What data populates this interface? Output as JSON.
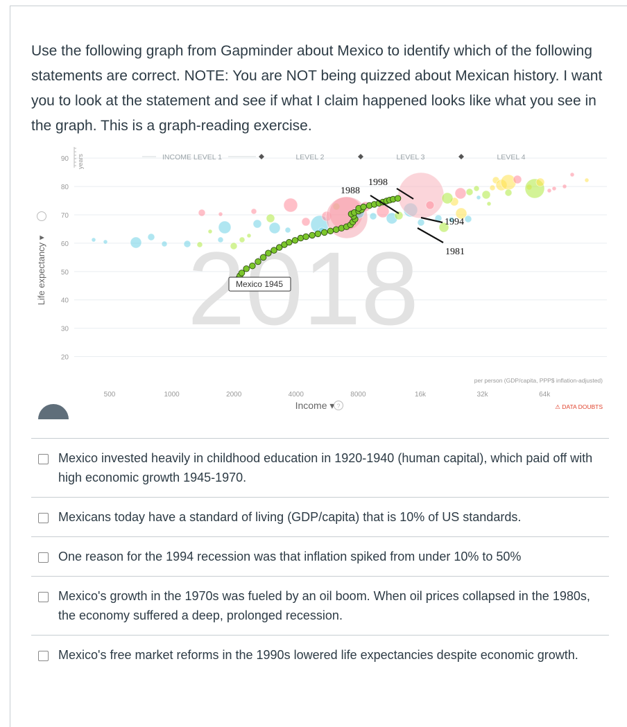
{
  "question": {
    "text": "Use the following graph from Gapminder about Mexico to identify which of the following statements are correct. NOTE: You are NOT being quizzed about Mexican history. I want you to look at the statement and see if what I claim happened looks like what you see in the graph. This is a graph-reading exercise."
  },
  "chart_data": {
    "type": "scatter",
    "background_year": "2018",
    "xlabel": "Income",
    "xlabel_note": "per person (GDP/capita, PPP$ inflation-adjusted)",
    "ylabel": "Life expectancy",
    "y_unit": "years",
    "xscale": "log",
    "x_ticks": [
      "500",
      "1000",
      "2000",
      "4000",
      "8000",
      "16k",
      "32k",
      "64k"
    ],
    "y_ticks": [
      "20",
      "30",
      "40",
      "50",
      "60",
      "70",
      "80",
      "90"
    ],
    "ylim": [
      15,
      92
    ],
    "income_levels": [
      "INCOME LEVEL 1",
      "LEVEL 2",
      "LEVEL 3",
      "LEVEL 4"
    ],
    "data_doubts": "DATA DOUBTS",
    "highlight_label": "Mexico 1945",
    "annotations": [
      "1988",
      "1998",
      "1994",
      "1981"
    ],
    "series": [
      {
        "name": "Mexico",
        "color": "#7cc62c",
        "points": [
          [
            3250,
            46
          ],
          [
            3300,
            47.5
          ],
          [
            3350,
            48.5
          ],
          [
            3420,
            49.5
          ],
          [
            3600,
            51
          ],
          [
            3850,
            52
          ],
          [
            4100,
            53.5
          ],
          [
            4350,
            55
          ],
          [
            4600,
            56.5
          ],
          [
            4900,
            57.5
          ],
          [
            5200,
            58.5
          ],
          [
            5500,
            59.5
          ],
          [
            5800,
            60.3
          ],
          [
            6200,
            61
          ],
          [
            6600,
            61.8
          ],
          [
            7000,
            62.3
          ],
          [
            7500,
            62.8
          ],
          [
            8000,
            63.3
          ],
          [
            8600,
            63.8
          ],
          [
            9200,
            64.3
          ],
          [
            9800,
            64.8
          ],
          [
            10400,
            65.3
          ],
          [
            11000,
            65.8
          ],
          [
            11500,
            66.5
          ],
          [
            11800,
            67.5
          ],
          [
            12100,
            68.5
          ],
          [
            11900,
            69.5
          ],
          [
            11600,
            70.3
          ],
          [
            12000,
            70.8
          ],
          [
            12600,
            71.3
          ],
          [
            13000,
            71.8
          ],
          [
            12600,
            72.3
          ],
          [
            13300,
            72.8
          ],
          [
            14200,
            73.3
          ],
          [
            15000,
            73.7
          ],
          [
            15800,
            74.1
          ],
          [
            16500,
            74.5
          ],
          [
            17200,
            74.9
          ],
          [
            17800,
            75.2
          ],
          [
            18500,
            75.5
          ],
          [
            19500,
            75.8
          ]
        ]
      }
    ],
    "colors": {
      "asia": "#ff8b9a",
      "americas": "#aeea3f",
      "africa": "#6fd2e6",
      "europe": "#ffe14f",
      "grid": "#e9eef1",
      "axis_text": "#999999",
      "year_watermark": "#dcdcdc"
    }
  },
  "answers": [
    {
      "label": "Mexico invested heavily in childhood education in 1920-1940 (human capital), which paid off with high economic growth 1945-1970."
    },
    {
      "label": "Mexicans today have a standard of living (GDP/capita) that is 10% of US standards."
    },
    {
      "label": "One reason for the 1994 recession was that inflation spiked from under 10% to 50%"
    },
    {
      "label": "Mexico's growth in the 1970s was fueled by an oil boom. When oil prices collapsed in the 1980s, the economy suffered a deep, prolonged recession."
    },
    {
      "label": "Mexico's free market reforms in the 1990s lowered life expectancies despite economic growth."
    }
  ]
}
